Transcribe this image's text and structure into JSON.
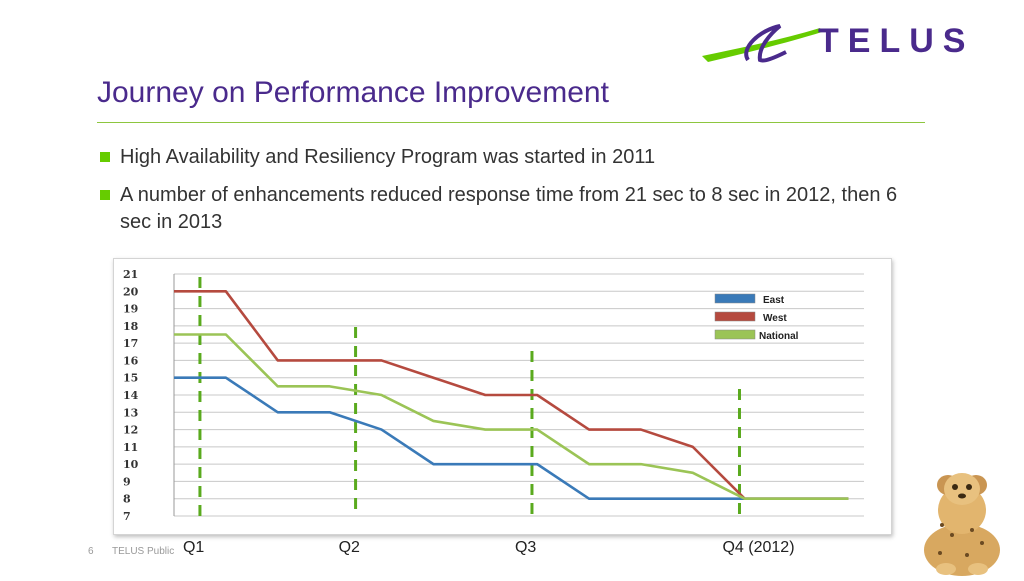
{
  "logo": {
    "text": "TELUS"
  },
  "title": "Journey on Performance Improvement",
  "bullets": [
    "High Availability and Resiliency Program was started in 2011",
    "A number of enhancements reduced response time from 21 sec to 8 sec in 2012, then 6 sec in 2013"
  ],
  "chart_data": {
    "type": "line",
    "x": [
      0,
      1,
      2,
      3,
      4,
      5,
      6,
      7,
      8,
      9,
      10,
      11,
      12,
      13
    ],
    "series": [
      {
        "name": "East",
        "color": "#3a7ab8",
        "values": [
          15,
          15,
          13,
          13,
          12,
          10,
          10,
          10,
          8,
          8,
          8,
          8,
          8,
          8
        ]
      },
      {
        "name": "West",
        "color": "#b54a3f",
        "values": [
          20,
          20,
          16,
          16,
          16,
          15,
          14,
          14,
          12,
          12,
          11,
          8,
          8,
          8
        ]
      },
      {
        "name": "National",
        "color": "#9bc456",
        "values": [
          17.5,
          17.5,
          14.5,
          14.5,
          14,
          12.5,
          12,
          12,
          10,
          10,
          9.5,
          8,
          8,
          8
        ]
      }
    ],
    "yticks": [
      7,
      8,
      9,
      10,
      11,
      12,
      13,
      14,
      15,
      16,
      17,
      18,
      19,
      20,
      21
    ],
    "ylim": [
      7,
      21
    ],
    "grid": true,
    "legend_position": "top-right",
    "quarter_markers": [
      {
        "label": "Q1",
        "x": 0.5
      },
      {
        "label": "Q2",
        "x": 3.5
      },
      {
        "label": "Q3",
        "x": 6.9
      },
      {
        "label": "Q4   (2012)",
        "x": 10.9
      }
    ],
    "marker_color": "#5aaa1e"
  },
  "footer": {
    "page_number": "6",
    "label": "TELUS Public"
  },
  "colors": {
    "title": "#4a2a8c",
    "rule": "#8dc63f",
    "bullet": "#66cc00"
  }
}
